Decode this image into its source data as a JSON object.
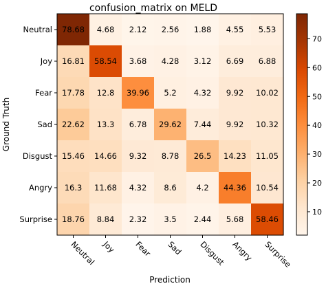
{
  "chart_data": {
    "type": "heatmap",
    "title": "confusion_matrix on MELD",
    "xlabel": "Prediction",
    "ylabel": "Ground Truth",
    "x_categories": [
      "Neutral",
      "Joy",
      "Fear",
      "Sad",
      "Disgust",
      "Angry",
      "Surprise"
    ],
    "y_categories": [
      "Neutral",
      "Joy",
      "Fear",
      "Sad",
      "Disgust",
      "Angry",
      "Surprise"
    ],
    "values": [
      [
        78.68,
        4.68,
        2.12,
        2.56,
        1.88,
        4.55,
        5.53
      ],
      [
        16.81,
        58.54,
        3.68,
        4.28,
        3.12,
        6.69,
        6.88
      ],
      [
        17.78,
        12.8,
        39.96,
        5.2,
        4.32,
        9.92,
        10.02
      ],
      [
        22.62,
        13.3,
        6.78,
        29.62,
        7.44,
        9.92,
        10.32
      ],
      [
        15.46,
        14.66,
        9.32,
        8.78,
        26.5,
        14.23,
        11.05
      ],
      [
        16.3,
        11.68,
        4.32,
        8.6,
        4.2,
        44.36,
        10.54
      ],
      [
        18.76,
        8.84,
        2.32,
        3.5,
        2.44,
        5.68,
        58.46
      ]
    ],
    "value_labels": [
      [
        "78.68",
        "4.68",
        "2.12",
        "2.56",
        "1.88",
        "4.55",
        "5.53"
      ],
      [
        "16.81",
        "58.54",
        "3.68",
        "4.28",
        "3.12",
        "6.69",
        "6.88"
      ],
      [
        "17.78",
        "12.8",
        "39.96",
        "5.2",
        "4.32",
        "9.92",
        "10.02"
      ],
      [
        "22.62",
        "13.3",
        "6.78",
        "29.62",
        "7.44",
        "9.92",
        "10.32"
      ],
      [
        "15.46",
        "14.66",
        "9.32",
        "8.78",
        "26.5",
        "14.23",
        "11.05"
      ],
      [
        "16.3",
        "11.68",
        "4.32",
        "8.6",
        "4.2",
        "44.36",
        "10.54"
      ],
      [
        "18.76",
        "8.84",
        "2.32",
        "3.5",
        "2.44",
        "5.68",
        "58.46"
      ]
    ],
    "colormap": "Oranges",
    "color_range": [
      1.88,
      78.68
    ],
    "colorbar_ticks": [
      10,
      20,
      30,
      40,
      50,
      60,
      70
    ],
    "x_tick_rotation_deg": 45,
    "grid": false
  }
}
